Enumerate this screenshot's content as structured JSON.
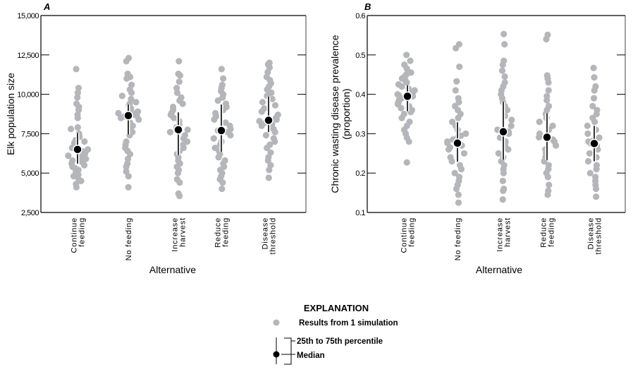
{
  "legend": {
    "title": "EXPLANATION",
    "point_label": "Results from 1 simulation",
    "iqr_label": "25th to 75th percentile",
    "median_label": "Median"
  },
  "colors": {
    "points": "#b4b6b9",
    "median": "#000000",
    "iqr_line": "#000000",
    "iqr_halo": "#ffffff",
    "right_axis": "#808080"
  },
  "chart_data": [
    {
      "panel": "A",
      "type": "scatter",
      "ylabel": [
        "Elk population size"
      ],
      "xlabel": "Alternative",
      "ylim": [
        2500,
        15000
      ],
      "yticks": [
        2500,
        5000,
        7500,
        10000,
        12500,
        15000
      ],
      "ytick_labels": [
        "2,500",
        "5,000",
        "7,500",
        "10,000",
        "12,500",
        "15,000"
      ],
      "categories": [
        [
          "Continue",
          "feeding"
        ],
        [
          "No feeding"
        ],
        [
          "Increase",
          "harvest"
        ],
        [
          "Reduce",
          "feeding"
        ],
        [
          "Disease",
          "threshold"
        ]
      ],
      "groups": [
        {
          "median": 6500,
          "q25": 5600,
          "q75": 7550,
          "values": [
            11600,
            10400,
            10100,
            9800,
            9400,
            9200,
            9000,
            8700,
            8500,
            7900,
            7800,
            7500,
            7300,
            7100,
            7000,
            6900,
            6800,
            6600,
            6500,
            6400,
            6300,
            6200,
            6100,
            6000,
            5900,
            5800,
            5700,
            5600,
            5500,
            5400,
            5300,
            5200,
            5100,
            5000,
            4900,
            4800,
            4600,
            4500,
            4300,
            4100
          ]
        },
        {
          "median": 8650,
          "q25": 7450,
          "q75": 9350,
          "values": [
            12300,
            12100,
            11300,
            11100,
            11000,
            10600,
            10300,
            10100,
            9900,
            9700,
            9500,
            9400,
            9300,
            9100,
            9000,
            8900,
            8850,
            8800,
            8700,
            8650,
            8600,
            8500,
            8400,
            8200,
            8000,
            7800,
            7600,
            7400,
            7000,
            6800,
            6600,
            6400,
            6200,
            5900,
            5600,
            5400,
            5100,
            4800,
            4100
          ]
        },
        {
          "median": 7750,
          "q25": 6150,
          "q75": 8850,
          "values": [
            12100,
            11300,
            11200,
            10800,
            10400,
            10100,
            9800,
            9600,
            9400,
            9200,
            9000,
            8800,
            8700,
            8500,
            8300,
            8100,
            7900,
            7800,
            7750,
            7600,
            7400,
            7200,
            7000,
            6800,
            6600,
            6400,
            6200,
            6000,
            5800,
            5600,
            5400,
            5200,
            5000,
            4600,
            4400,
            3700,
            3550
          ]
        },
        {
          "median": 7700,
          "q25": 6350,
          "q75": 9350,
          "values": [
            11600,
            11000,
            10600,
            10400,
            10200,
            10000,
            9800,
            9600,
            9400,
            9200,
            9000,
            8800,
            8600,
            8400,
            8200,
            8000,
            7800,
            7700,
            7600,
            7400,
            7200,
            7000,
            6800,
            6600,
            6400,
            6200,
            6000,
            5800,
            5600,
            5400,
            5200,
            5000,
            4800,
            4600,
            4400,
            4000
          ]
        },
        {
          "median": 8350,
          "q25": 7600,
          "q75": 9850,
          "values": [
            12000,
            11900,
            11700,
            11400,
            11100,
            10900,
            10700,
            10500,
            10300,
            10100,
            9900,
            9700,
            9500,
            9300,
            9100,
            8900,
            8700,
            8500,
            8400,
            8350,
            8300,
            8200,
            8100,
            8000,
            7900,
            7800,
            7600,
            7400,
            7200,
            7000,
            6800,
            6600,
            6300,
            6000,
            5800,
            5500,
            5200,
            4700
          ]
        }
      ]
    },
    {
      "panel": "B",
      "type": "scatter",
      "ylabel": [
        "Chronic wasting disease prevalence",
        "(proportion)"
      ],
      "xlabel": "Alternative",
      "ylim": [
        0.1,
        0.6
      ],
      "yticks": [
        0.1,
        0.2,
        0.3,
        0.4,
        0.5,
        0.6
      ],
      "ytick_labels": [
        "0.1",
        "0.2",
        "0.3",
        "0.4",
        "0.5",
        "0.6"
      ],
      "categories": [
        [
          "Continue",
          "feeding"
        ],
        [
          "No feeding"
        ],
        [
          "Increase",
          "harvest"
        ],
        [
          "Reduce",
          "feeding"
        ],
        [
          "Disease",
          "threshold"
        ]
      ],
      "groups": [
        {
          "median": 0.395,
          "q25": 0.357,
          "q75": 0.423,
          "values": [
            0.5,
            0.485,
            0.475,
            0.465,
            0.455,
            0.45,
            0.445,
            0.44,
            0.435,
            0.43,
            0.425,
            0.42,
            0.415,
            0.41,
            0.405,
            0.4,
            0.398,
            0.395,
            0.392,
            0.39,
            0.385,
            0.38,
            0.375,
            0.37,
            0.365,
            0.36,
            0.355,
            0.35,
            0.34,
            0.33,
            0.32,
            0.31,
            0.3,
            0.29,
            0.28,
            0.227
          ]
        },
        {
          "median": 0.276,
          "q25": 0.229,
          "q75": 0.329,
          "values": [
            0.527,
            0.517,
            0.47,
            0.433,
            0.41,
            0.39,
            0.38,
            0.37,
            0.36,
            0.35,
            0.34,
            0.33,
            0.32,
            0.31,
            0.3,
            0.295,
            0.29,
            0.285,
            0.28,
            0.276,
            0.27,
            0.265,
            0.26,
            0.25,
            0.24,
            0.23,
            0.22,
            0.21,
            0.2,
            0.19,
            0.18,
            0.17,
            0.16,
            0.145,
            0.125
          ]
        },
        {
          "median": 0.305,
          "q25": 0.234,
          "q75": 0.381,
          "values": [
            0.553,
            0.527,
            0.485,
            0.475,
            0.46,
            0.445,
            0.43,
            0.42,
            0.41,
            0.4,
            0.39,
            0.38,
            0.37,
            0.36,
            0.345,
            0.335,
            0.32,
            0.31,
            0.305,
            0.3,
            0.29,
            0.28,
            0.27,
            0.26,
            0.25,
            0.24,
            0.23,
            0.22,
            0.21,
            0.2,
            0.18,
            0.16,
            0.155,
            0.133
          ]
        },
        {
          "median": 0.291,
          "q25": 0.233,
          "q75": 0.352,
          "values": [
            0.551,
            0.54,
            0.448,
            0.44,
            0.43,
            0.41,
            0.395,
            0.385,
            0.37,
            0.36,
            0.35,
            0.34,
            0.33,
            0.32,
            0.31,
            0.3,
            0.291,
            0.285,
            0.28,
            0.27,
            0.26,
            0.25,
            0.24,
            0.23,
            0.22,
            0.21,
            0.2,
            0.19,
            0.17,
            0.155,
            0.145
          ]
        },
        {
          "median": 0.275,
          "q25": 0.23,
          "q75": 0.32,
          "values": [
            0.467,
            0.443,
            0.42,
            0.41,
            0.39,
            0.37,
            0.36,
            0.35,
            0.34,
            0.33,
            0.32,
            0.31,
            0.3,
            0.29,
            0.285,
            0.28,
            0.275,
            0.27,
            0.265,
            0.26,
            0.25,
            0.24,
            0.23,
            0.22,
            0.21,
            0.2,
            0.19,
            0.18,
            0.17,
            0.16,
            0.14
          ]
        }
      ]
    }
  ]
}
